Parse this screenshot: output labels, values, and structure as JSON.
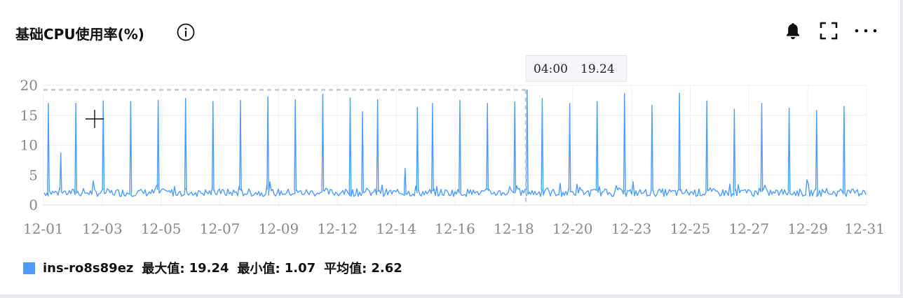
{
  "panel": {
    "title": "基础CPU使用率(%)",
    "info_icon": "info-circle-icon",
    "toolbar": [
      "bell-icon",
      "fullscreen-icon",
      "more-horizontal-icon"
    ]
  },
  "tooltip": {
    "time": "04:00",
    "value": "19.24"
  },
  "legend": {
    "series_name": "ins-ro8s89ez",
    "max_label": "最大值:",
    "max_value": "19.24",
    "min_label": "最小值:",
    "min_value": "1.07",
    "avg_label": "平均值:",
    "avg_value": "2.62",
    "color": "#4d9dff"
  },
  "chart_data": {
    "type": "line",
    "title": "基础CPU使用率(%)",
    "xlabel": "",
    "ylabel": "",
    "ylim": [
      0,
      20
    ],
    "y_ticks": [
      "0",
      "5",
      "10",
      "15",
      "20"
    ],
    "x_tick_labels": [
      "12-01",
      "12-03",
      "12-05",
      "12-07",
      "12-09",
      "12-12",
      "12-14",
      "12-16",
      "12-18",
      "12-20",
      "12-23",
      "12-25",
      "12-27",
      "12-29",
      "12-31"
    ],
    "grid": true,
    "legend_position": "bottom-left",
    "series": [
      {
        "name": "ins-ro8s89ez",
        "color": "#4d9dff",
        "baseline_typical": 2.0,
        "daily_peaks": [
          {
            "date": "12-01",
            "value": 17.0
          },
          {
            "date": "12-01",
            "value": 8.7
          },
          {
            "date": "12-02",
            "value": 17.0
          },
          {
            "date": "12-03",
            "value": 17.4
          },
          {
            "date": "12-04",
            "value": 17.3
          },
          {
            "date": "12-05",
            "value": 17.5
          },
          {
            "date": "12-06",
            "value": 17.8
          },
          {
            "date": "12-07",
            "value": 17.3
          },
          {
            "date": "12-08",
            "value": 17.5
          },
          {
            "date": "12-09",
            "value": 18.1
          },
          {
            "date": "12-10",
            "value": 17.6
          },
          {
            "date": "12-11",
            "value": 18.5
          },
          {
            "date": "12-12",
            "value": 17.9
          },
          {
            "date": "12-12",
            "value": 15.6
          },
          {
            "date": "12-13",
            "value": 17.6
          },
          {
            "date": "12-14",
            "value": 6.1
          },
          {
            "date": "12-14",
            "value": 16.3
          },
          {
            "date": "12-15",
            "value": 17.0
          },
          {
            "date": "12-16",
            "value": 17.5
          },
          {
            "date": "12-17",
            "value": 17.0
          },
          {
            "date": "12-18",
            "value": 17.2
          },
          {
            "date": "12-18",
            "value": 19.24
          },
          {
            "date": "12-19",
            "value": 17.8
          },
          {
            "date": "12-20",
            "value": 17.0
          },
          {
            "date": "12-21",
            "value": 17.3
          },
          {
            "date": "12-22",
            "value": 18.6
          },
          {
            "date": "12-23",
            "value": 16.7
          },
          {
            "date": "12-24",
            "value": 18.7
          },
          {
            "date": "12-25",
            "value": 17.4
          },
          {
            "date": "12-26",
            "value": 16.0
          },
          {
            "date": "12-27",
            "value": 17.0
          },
          {
            "date": "12-28",
            "value": 16.2
          },
          {
            "date": "12-29",
            "value": 15.8
          },
          {
            "date": "12-30",
            "value": 16.5
          }
        ]
      }
    ]
  }
}
